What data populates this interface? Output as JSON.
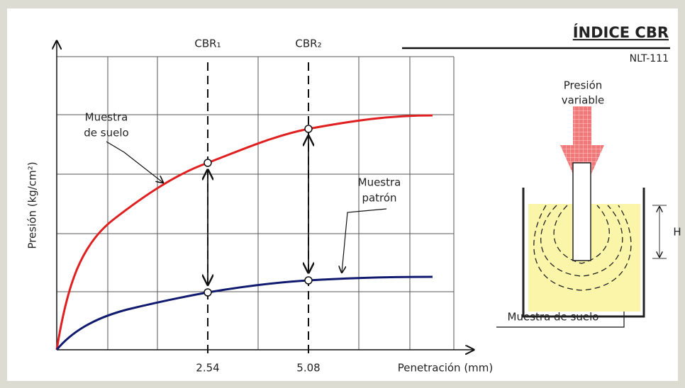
{
  "header": {
    "title": "ÍNDICE CBR",
    "code": "NLT-111"
  },
  "chart": {
    "y_axis_label": "Presión (kg/cm²)",
    "x_axis_label": "Penetración (mm)",
    "x_tick_labels": [
      "2.54",
      "5.08"
    ],
    "markers": [
      "CBR₁",
      "CBR₂"
    ],
    "soil_label": [
      "Muestra",
      "de suelo"
    ],
    "standard_label": [
      "Muestra",
      "patrón"
    ]
  },
  "apparatus": {
    "load_label": [
      "Presión",
      "variable"
    ],
    "height_label": "H",
    "sample_label": "Muestra de suelo"
  }
}
